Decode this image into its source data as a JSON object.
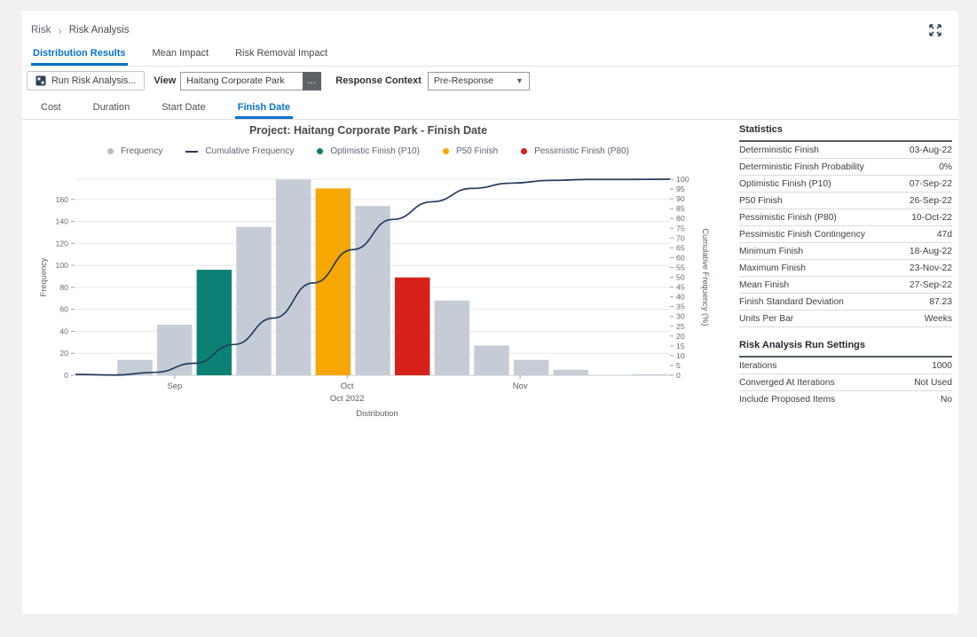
{
  "page": {
    "background": "#f2f1ef",
    "card_background": "#ffffff",
    "accent": "#0572ce"
  },
  "breadcrumb": {
    "items": [
      "Risk",
      "Risk Analysis"
    ]
  },
  "tabs": [
    {
      "label": "Distribution Results",
      "active": true
    },
    {
      "label": "Mean Impact",
      "active": false
    },
    {
      "label": "Risk Removal Impact",
      "active": false
    }
  ],
  "toolbar": {
    "run_button_label": "Run Risk Analysis...",
    "view_label": "View",
    "view_value": "Haitang Corporate Park",
    "view_more_label": "…",
    "response_context_label": "Response Context",
    "response_context_value": "Pre-Response"
  },
  "subtabs": [
    {
      "label": "Cost",
      "active": false
    },
    {
      "label": "Duration",
      "active": false
    },
    {
      "label": "Start Date",
      "active": false
    },
    {
      "label": "Finish Date",
      "active": true
    }
  ],
  "chart_data": {
    "type": "bar",
    "subtype": "histogram-with-cumulative-line",
    "title": "Project: Haitang Corporate Park - Finish Date",
    "xlabel": "Distribution",
    "x_axis_secondary_label": "Oct 2022",
    "ylabel_left": "Frequency",
    "ylabel_right": "Cumulative Frequency (%)",
    "ylim_left": [
      0,
      180
    ],
    "yticks_left": [
      0,
      20,
      40,
      60,
      80,
      100,
      120,
      140,
      160
    ],
    "ylim_right": [
      0,
      100
    ],
    "ytick_step_right": 5,
    "grid": true,
    "legend_position": "top",
    "legend": [
      {
        "label": "Frequency",
        "marker": "circle",
        "color": "#b7bec8"
      },
      {
        "label": "Cumulative Frequency",
        "marker": "line",
        "color": "#223d5f"
      },
      {
        "label": "Optimistic Finish (P10)",
        "marker": "circle",
        "color": "#0b8174"
      },
      {
        "label": "P50 Finish",
        "marker": "circle",
        "color": "#f7a700"
      },
      {
        "label": "Pessimistic Finish (P80)",
        "marker": "circle",
        "color": "#d6201a"
      }
    ],
    "colors": {
      "frequency": "#c6ccd5",
      "p10": "#0b8174",
      "p50": "#f7a700",
      "p80": "#d6201a",
      "line": "#223d5f",
      "grid": "#e6e8eb",
      "axis_text": "#636b76"
    },
    "x_months": [
      {
        "label": "Sep",
        "pos": 0.167
      },
      {
        "label": "Oct",
        "pos": 0.457
      },
      {
        "label": "Nov",
        "pos": 0.748
      }
    ],
    "units_per_bar": "Weeks",
    "bars": [
      {
        "value": 1,
        "series": "frequency"
      },
      {
        "value": 14,
        "series": "frequency"
      },
      {
        "value": 46,
        "series": "frequency"
      },
      {
        "value": 96,
        "series": "p10"
      },
      {
        "value": 135,
        "series": "frequency"
      },
      {
        "value": 178,
        "series": "frequency"
      },
      {
        "value": 170,
        "series": "p50"
      },
      {
        "value": 154,
        "series": "frequency"
      },
      {
        "value": 89,
        "series": "p80"
      },
      {
        "value": 68,
        "series": "frequency"
      },
      {
        "value": 27,
        "series": "frequency"
      },
      {
        "value": 14,
        "series": "frequency"
      },
      {
        "value": 5,
        "series": "frequency"
      },
      {
        "value": 0,
        "series": "frequency"
      },
      {
        "value": 1,
        "series": "frequency"
      }
    ],
    "cumulative_pct": [
      0.1,
      1.5,
      6.1,
      15.7,
      29.2,
      47.1,
      64.1,
      79.5,
      88.5,
      95.3,
      98.0,
      99.4,
      99.9,
      99.9,
      100
    ]
  },
  "statistics": {
    "title": "Statistics",
    "rows": [
      {
        "label": "Deterministic Finish",
        "value": "03-Aug-22"
      },
      {
        "label": "Deterministic Finish Probability",
        "value": "0%"
      },
      {
        "label": "Optimistic Finish (P10)",
        "value": "07-Sep-22"
      },
      {
        "label": "P50 Finish",
        "value": "26-Sep-22"
      },
      {
        "label": "Pessimistic Finish (P80)",
        "value": "10-Oct-22"
      },
      {
        "label": "Pessimistic Finish Contingency",
        "value": "47d"
      },
      {
        "label": "Minimum Finish",
        "value": "18-Aug-22"
      },
      {
        "label": "Maximum Finish",
        "value": "23-Nov-22"
      },
      {
        "label": "Mean Finish",
        "value": "27-Sep-22"
      },
      {
        "label": "Finish Standard Deviation",
        "value": "87.23"
      },
      {
        "label": "Units Per Bar",
        "value": "Weeks"
      }
    ]
  },
  "run_settings": {
    "title": "Risk Analysis Run Settings",
    "rows": [
      {
        "label": "Iterations",
        "value": "1000"
      },
      {
        "label": "Converged At Iterations",
        "value": "Not Used"
      },
      {
        "label": "Include Proposed Items",
        "value": "No"
      }
    ]
  }
}
